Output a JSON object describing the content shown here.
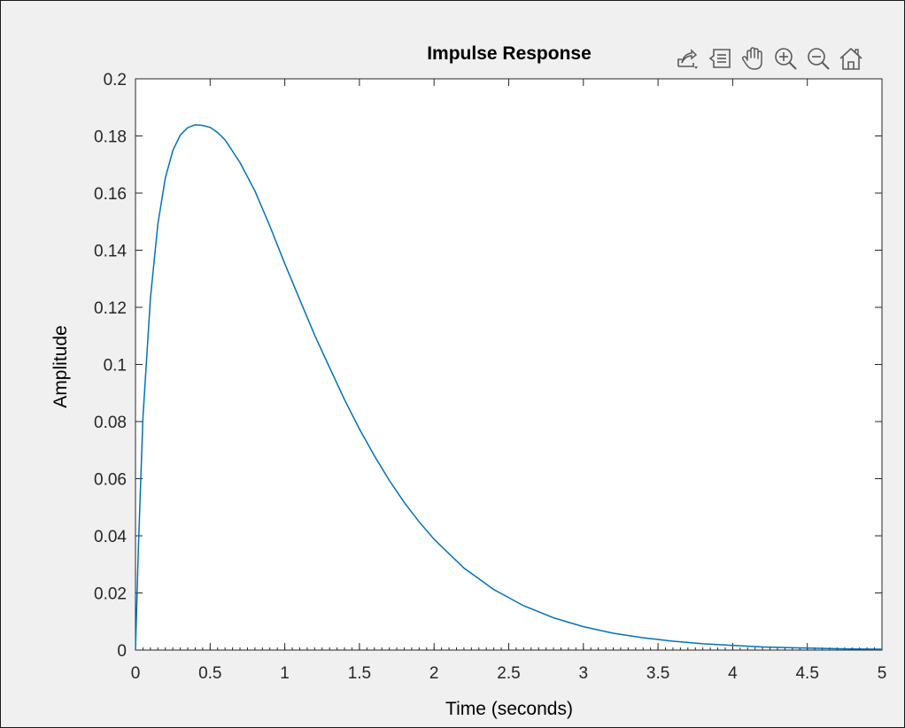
{
  "window": {
    "background": "#f0f0f0",
    "axes_background": "#ffffff"
  },
  "toolbar": {
    "items": [
      {
        "name": "export-icon"
      },
      {
        "name": "data-tips-icon"
      },
      {
        "name": "pan-icon"
      },
      {
        "name": "zoom-in-icon"
      },
      {
        "name": "zoom-out-icon"
      },
      {
        "name": "home-icon"
      }
    ]
  },
  "chart_data": {
    "type": "line",
    "title": "Impulse Response",
    "xlabel": "Time (seconds)",
    "ylabel": "Amplitude",
    "xlim": [
      0,
      5
    ],
    "ylim": [
      0,
      0.2
    ],
    "xticks": [
      0,
      0.5,
      1,
      1.5,
      2,
      2.5,
      3,
      3.5,
      4,
      4.5,
      5
    ],
    "xtick_labels": [
      "0",
      "0.5",
      "1",
      "1.5",
      "2",
      "2.5",
      "3",
      "3.5",
      "4",
      "4.5",
      "5"
    ],
    "yticks": [
      0,
      0.02,
      0.04,
      0.06,
      0.08,
      0.1,
      0.12,
      0.14,
      0.16,
      0.18,
      0.2
    ],
    "ytick_labels": [
      "0",
      "0.02",
      "0.04",
      "0.06",
      "0.08",
      "0.1",
      "0.12",
      "0.14",
      "0.16",
      "0.18",
      "0.2"
    ],
    "grid": false,
    "line_color": "#0072BD",
    "series": [
      {
        "x": [
          0,
          0.02,
          0.05,
          0.1,
          0.15,
          0.2,
          0.25,
          0.3,
          0.35,
          0.4,
          0.45,
          0.5,
          0.55,
          0.6,
          0.7,
          0.8,
          0.9,
          1.0,
          1.1,
          1.2,
          1.3,
          1.4,
          1.5,
          1.6,
          1.7,
          1.8,
          1.9,
          2.0,
          2.2,
          2.4,
          2.6,
          2.8,
          3.0,
          3.2,
          3.4,
          3.6,
          3.8,
          4.0,
          4.2,
          4.4,
          4.6,
          4.8,
          5.0
        ],
        "y": [
          0,
          0.0369,
          0.0813,
          0.1233,
          0.1492,
          0.1653,
          0.1749,
          0.1803,
          0.1829,
          0.1839,
          0.1837,
          0.183,
          0.1812,
          0.1786,
          0.1707,
          0.1607,
          0.1485,
          0.1353,
          0.1227,
          0.1103,
          0.0989,
          0.0877,
          0.0774,
          0.068,
          0.0594,
          0.0517,
          0.0449,
          0.0388,
          0.0287,
          0.0212,
          0.0155,
          0.0113,
          0.0082,
          0.0059,
          0.0043,
          0.0031,
          0.0022,
          0.0016,
          0.0011,
          0.0008,
          0.0006,
          0.0004,
          0.0003
        ]
      }
    ]
  }
}
